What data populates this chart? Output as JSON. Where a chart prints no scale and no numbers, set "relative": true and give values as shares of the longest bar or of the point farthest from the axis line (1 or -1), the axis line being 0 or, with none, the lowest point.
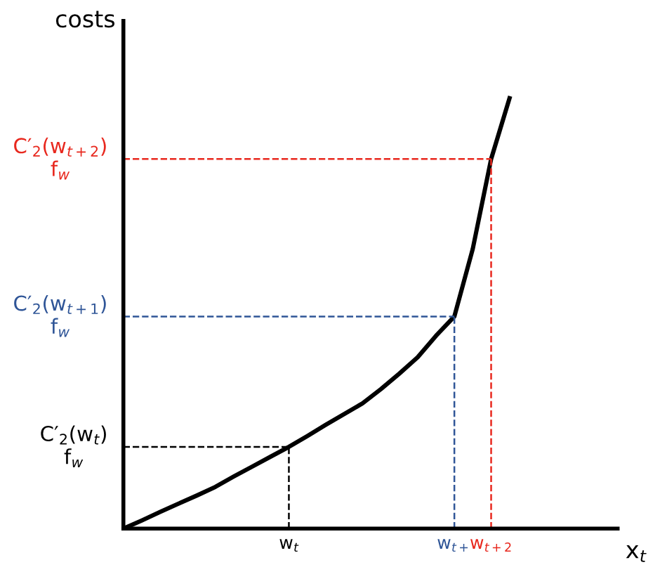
{
  "chart_data": {
    "type": "line",
    "relative": true,
    "ylabel": "costs",
    "xlabel": "x$_{t}$",
    "categories": [
      null,
      null,
      null,
      null,
      null,
      null,
      null,
      null,
      null,
      "w$_{t}$",
      null,
      null,
      null,
      null,
      null,
      null,
      null,
      null,
      "w$_{t+}$",
      null,
      "w$_{t+2}$",
      null
    ],
    "series": [
      {
        "color": "#000000",
        "values": [
          0,
          0.019,
          0.039,
          0.058,
          0.077,
          0.097,
          0.121,
          0.144,
          0.167,
          0.19,
          0.215,
          0.241,
          0.266,
          0.291,
          0.324,
          0.36,
          0.398,
          0.448,
          0.493,
          0.65,
          0.859,
          1
        ]
      }
    ],
    "ref_lines": [
      {
        "axis": "y",
        "value": 0.19,
        "label": "C′$_{2}$(w$_{t}$)\nf$_{w}$",
        "color": "#000000",
        "line_style": "dashed"
      },
      {
        "axis": "y",
        "value": 0.493,
        "label": "C′$_{2}$(w$_{t+1}$)\nf$_{w}$",
        "color": "#2f5597",
        "line_style": "dashed"
      },
      {
        "axis": "y",
        "value": 0.859,
        "label": "C′$_{2}$(w$_{t+2}$)\nf$_{w}$",
        "color": "#e8281e",
        "line_style": "dashed"
      },
      {
        "axis": "x",
        "value": "w$_{t}$",
        "color": "#000000",
        "line_style": "dashed"
      },
      {
        "axis": "x",
        "value": "w$_{t+}$",
        "color": "#2f5597",
        "line_style": "dashed"
      },
      {
        "axis": "x",
        "value": "w$_{t+2}$",
        "color": "#e8281e",
        "line_style": "dashed"
      }
    ]
  }
}
